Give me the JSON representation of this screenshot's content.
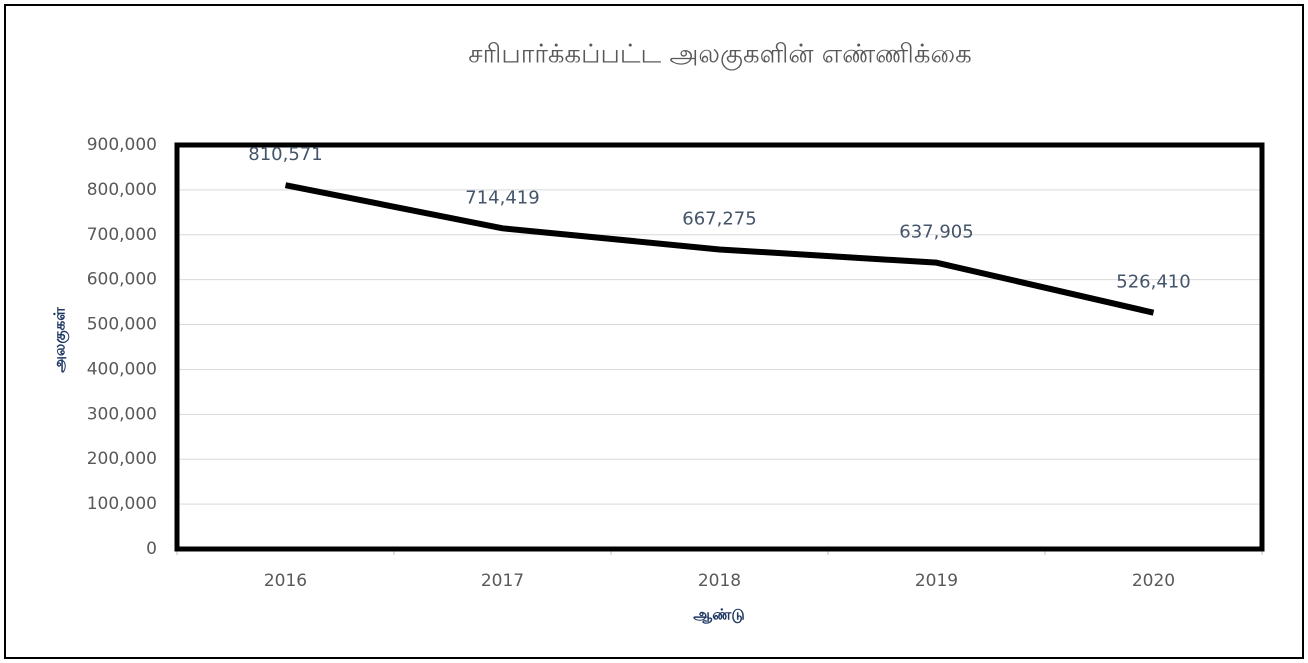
{
  "chart_data": {
    "type": "line",
    "title": "சரிபார்க்கப்பட்ட அலகுகளின் எண்ணிக்கை",
    "x_label": "ஆண்டு",
    "y_label": "அலகுகள்",
    "categories": [
      "2016",
      "2017",
      "2018",
      "2019",
      "2020"
    ],
    "values": [
      810571,
      714419,
      667275,
      637905,
      526410
    ],
    "value_labels": [
      "810,571",
      "714,419",
      "667,275",
      "637,905",
      "526,410"
    ],
    "color": "#000000",
    "ylim": [
      0,
      900000
    ],
    "yticks": [
      0,
      {
        "value": 100000,
        "label": "100,000"
      },
      {
        "value": 200000,
        "label": "200,000"
      },
      {
        "value": 300000,
        "label": "300,000"
      },
      {
        "value": 400000,
        "label": "400,000"
      },
      {
        "value": 500000,
        "label": "500,000"
      },
      {
        "value": 600000,
        "label": "600,000"
      },
      {
        "value": 700000,
        "label": "700,000"
      },
      {
        "value": 800000,
        "label": "800,000"
      },
      {
        "value": 900000,
        "label": "900,000"
      }
    ],
    "grid": true
  }
}
